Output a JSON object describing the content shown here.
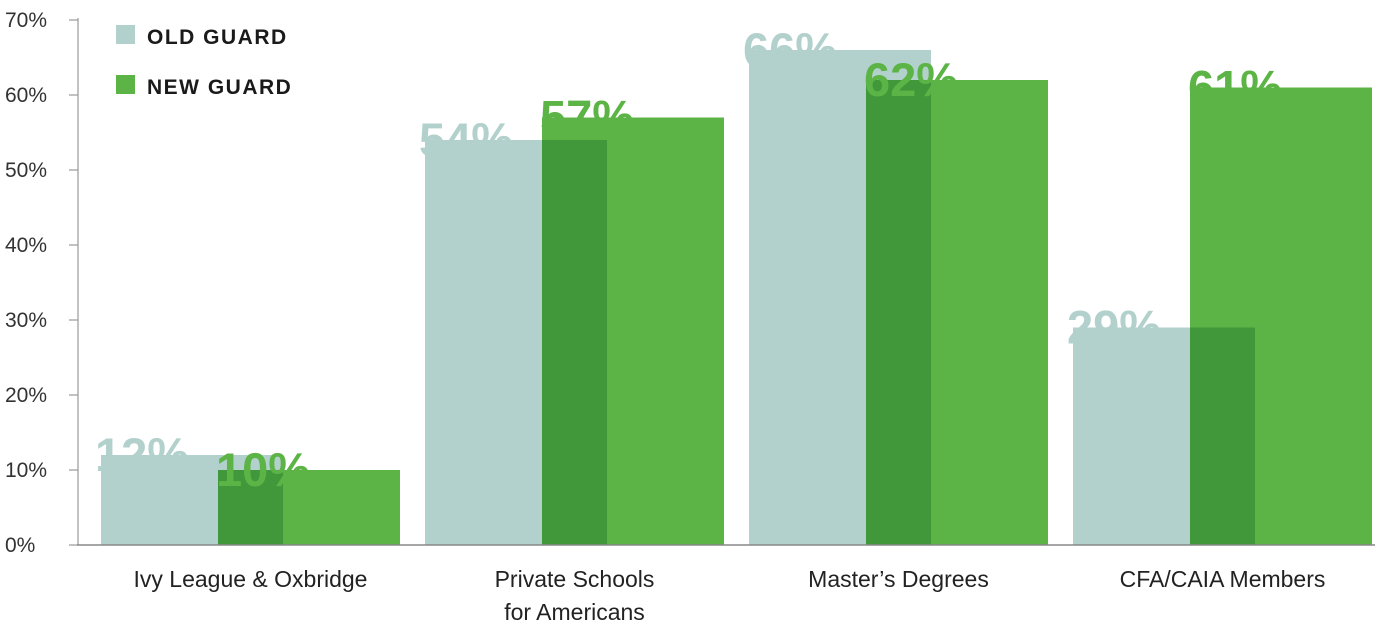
{
  "chart_data": {
    "type": "bar",
    "categories": [
      [
        "Ivy League & Oxbridge"
      ],
      [
        "Private Schools",
        "for Americans"
      ],
      [
        "Master’s Degrees"
      ],
      [
        "CFA/CAIA Members"
      ]
    ],
    "series": [
      {
        "name": "OLD GUARD",
        "values": [
          12,
          54,
          66,
          29
        ],
        "labels": [
          "12%",
          "54%",
          "66%",
          "29%"
        ],
        "color": "#b3d1cc"
      },
      {
        "name": "NEW GUARD",
        "values": [
          10,
          57,
          62,
          61
        ],
        "labels": [
          "10%",
          "57%",
          "62%",
          "61%"
        ],
        "color": "#5db446"
      }
    ],
    "overlap_color": "#41983a",
    "yticks": [
      "0%",
      "10%",
      "20%",
      "30%",
      "40%",
      "50%",
      "60%",
      "70%"
    ],
    "ylim": [
      0,
      70
    ],
    "grid": false,
    "legend": "top-left"
  }
}
